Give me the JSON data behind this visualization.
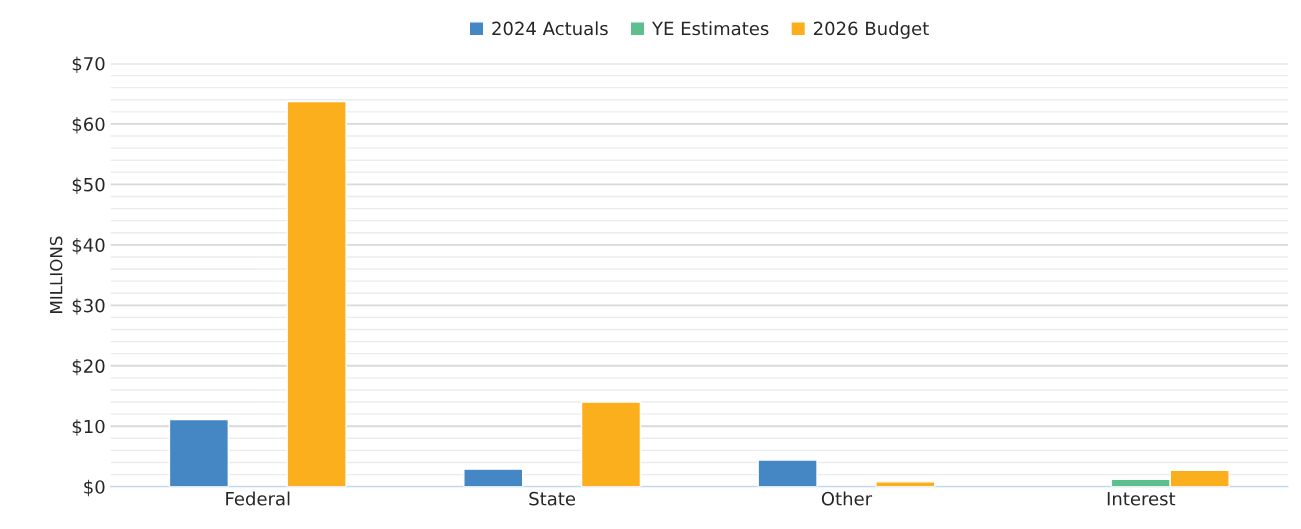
{
  "chart_data": {
    "type": "bar",
    "ylabel": "MILLIONS",
    "categories": [
      "Federal",
      "State",
      "Other",
      "Interest"
    ],
    "series": [
      {
        "name": "2024 Actuals",
        "color": "#4587c5",
        "values": [
          11.1,
          2.9,
          4.4,
          null
        ]
      },
      {
        "name": "YE Estimates",
        "color": "#5cbf8d",
        "values": [
          null,
          null,
          null,
          1.2
        ]
      },
      {
        "name": "2026 Budget",
        "color": "#fcaf1c",
        "values": [
          63.7,
          14.0,
          0.8,
          2.7
        ]
      }
    ],
    "ylim": [
      0,
      70
    ],
    "yticks": [
      {
        "value": 0,
        "label": "$0"
      },
      {
        "value": 10,
        "label": "$10"
      },
      {
        "value": 20,
        "label": "$20"
      },
      {
        "value": 30,
        "label": "$30"
      },
      {
        "value": 40,
        "label": "$40"
      },
      {
        "value": 50,
        "label": "$50"
      },
      {
        "value": 60,
        "label": "$60"
      },
      {
        "value": 70,
        "label": "$70"
      }
    ],
    "grid": "y",
    "legend": "top"
  }
}
